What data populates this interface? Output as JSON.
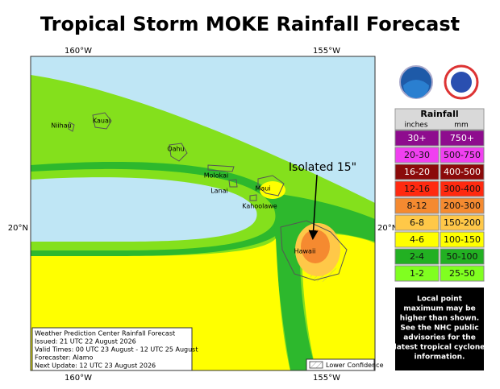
{
  "header": {
    "title": "Tropical Storm MOKE Rainfall Forecast"
  },
  "map": {
    "lon_labels": [
      "160°W",
      "155°W"
    ],
    "lat_label": "20°N",
    "islands": [
      "Niihau",
      "Kauai",
      "Oahu",
      "Molokai",
      "Lanai",
      "Maui",
      "Kahoolawe",
      "Hawaii"
    ],
    "annotation": "Isolated 15\"",
    "info_box": [
      "Weather Prediction Center Rainfall Forecast",
      "Issued: 21 UTC 22 August 2026",
      "Valid Times: 00 UTC 23 August - 12 UTC 25 August",
      "Forecaster: Alamo",
      "Next Update: 12 UTC 23 August 2026"
    ],
    "lower_confidence": "Lower Confidence"
  },
  "legend": {
    "title": "Rainfall",
    "units": [
      "inches",
      "mm"
    ],
    "rows": [
      {
        "inches": "30+",
        "mm": "750+",
        "color": "#8e0c8e"
      },
      {
        "inches": "20-30",
        "mm": "500-750",
        "color": "#f040f0"
      },
      {
        "inches": "16-20",
        "mm": "400-500",
        "color": "#8b0a0a"
      },
      {
        "inches": "12-16",
        "mm": "300-400",
        "color": "#ff2a10"
      },
      {
        "inches": "8-12",
        "mm": "200-300",
        "color": "#f58a30"
      },
      {
        "inches": "6-8",
        "mm": "150-200",
        "color": "#ffc848"
      },
      {
        "inches": "4-6",
        "mm": "100-150",
        "color": "#ffff00"
      },
      {
        "inches": "2-4",
        "mm": "50-100",
        "color": "#22b022"
      },
      {
        "inches": "1-2",
        "mm": "25-50",
        "color": "#80ff20"
      }
    ],
    "note": [
      "Local point",
      "maximum may be",
      "higher than shown.",
      "See the NHC public",
      "advisories for the",
      "latest tropical cyclone",
      "information."
    ]
  }
}
